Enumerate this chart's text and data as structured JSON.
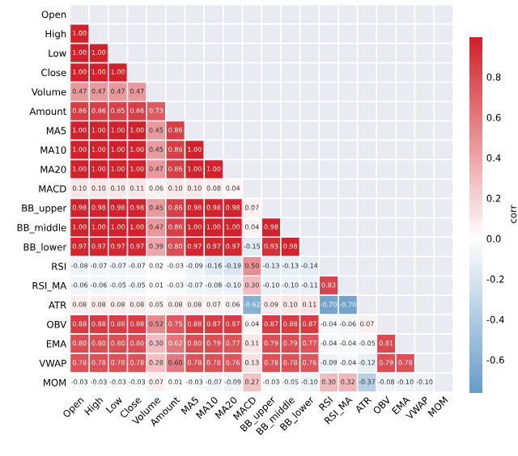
{
  "chart_data": {
    "type": "heatmap",
    "clabel": "corr",
    "data_labels": true,
    "grid": true,
    "categories": [
      "Open",
      "High",
      "Low",
      "Close",
      "Volume",
      "Amount",
      "MA5",
      "MA10",
      "MA20",
      "MACD",
      "BB_upper",
      "BB_middle",
      "BB_lower",
      "RSI",
      "RSI_MA",
      "ATR",
      "OBV",
      "EMA",
      "VWAP",
      "MOM"
    ],
    "y_categories": [
      "Open",
      "High",
      "Low",
      "Close",
      "Volume",
      "Amount",
      "MA5",
      "MA10",
      "MA20",
      "MACD",
      "BB_upper",
      "BB_middle",
      "BB_lower",
      "RSI",
      "RSI_MA",
      "ATR",
      "OBV",
      "EMA",
      "VWAP",
      "MOM"
    ],
    "clim": [
      -0.76,
      1.0
    ],
    "cticks": [
      {
        "value": -0.6,
        "label": "-0.6"
      },
      {
        "value": -0.4,
        "label": "-0.4"
      },
      {
        "value": -0.2,
        "label": "-0.2"
      },
      {
        "value": 0,
        "label": "0.0"
      },
      {
        "value": 0.2,
        "label": "0.2"
      },
      {
        "value": 0.4,
        "label": "0.4"
      },
      {
        "value": 0.6,
        "label": "0.6"
      },
      {
        "value": 0.8,
        "label": "0.8"
      }
    ],
    "cells": [
      [
        null,
        null,
        null,
        null,
        null,
        null,
        null,
        null,
        null,
        null,
        null,
        null,
        null,
        null,
        null,
        null,
        null,
        null,
        null,
        null
      ],
      [
        1.0,
        null,
        null,
        null,
        null,
        null,
        null,
        null,
        null,
        null,
        null,
        null,
        null,
        null,
        null,
        null,
        null,
        null,
        null,
        null
      ],
      [
        1.0,
        1.0,
        null,
        null,
        null,
        null,
        null,
        null,
        null,
        null,
        null,
        null,
        null,
        null,
        null,
        null,
        null,
        null,
        null,
        null
      ],
      [
        1.0,
        1.0,
        1.0,
        null,
        null,
        null,
        null,
        null,
        null,
        null,
        null,
        null,
        null,
        null,
        null,
        null,
        null,
        null,
        null,
        null
      ],
      [
        0.47,
        0.47,
        0.47,
        0.47,
        null,
        null,
        null,
        null,
        null,
        null,
        null,
        null,
        null,
        null,
        null,
        null,
        null,
        null,
        null,
        null
      ],
      [
        0.86,
        0.86,
        0.85,
        0.86,
        0.73,
        null,
        null,
        null,
        null,
        null,
        null,
        null,
        null,
        null,
        null,
        null,
        null,
        null,
        null,
        null
      ],
      [
        1.0,
        1.0,
        1.0,
        1.0,
        0.45,
        0.86,
        null,
        null,
        null,
        null,
        null,
        null,
        null,
        null,
        null,
        null,
        null,
        null,
        null,
        null
      ],
      [
        1.0,
        1.0,
        1.0,
        1.0,
        0.45,
        0.86,
        1.0,
        null,
        null,
        null,
        null,
        null,
        null,
        null,
        null,
        null,
        null,
        null,
        null,
        null
      ],
      [
        1.0,
        1.0,
        1.0,
        1.0,
        0.47,
        0.86,
        1.0,
        1.0,
        null,
        null,
        null,
        null,
        null,
        null,
        null,
        null,
        null,
        null,
        null,
        null
      ],
      [
        0.1,
        0.1,
        0.1,
        0.11,
        0.06,
        0.1,
        0.1,
        0.08,
        0.04,
        null,
        null,
        null,
        null,
        null,
        null,
        null,
        null,
        null,
        null,
        null
      ],
      [
        0.98,
        0.98,
        0.98,
        0.98,
        0.45,
        0.86,
        0.98,
        0.98,
        0.98,
        0.07,
        null,
        null,
        null,
        null,
        null,
        null,
        null,
        null,
        null,
        null
      ],
      [
        1.0,
        1.0,
        1.0,
        1.0,
        0.47,
        0.86,
        1.0,
        1.0,
        1.0,
        0.04,
        0.98,
        null,
        null,
        null,
        null,
        null,
        null,
        null,
        null,
        null
      ],
      [
        0.97,
        0.97,
        0.97,
        0.97,
        0.39,
        0.8,
        0.97,
        0.97,
        0.97,
        -0.15,
        0.93,
        0.98,
        null,
        null,
        null,
        null,
        null,
        null,
        null,
        null
      ],
      [
        -0.08,
        -0.07,
        -0.07,
        -0.07,
        0.02,
        -0.03,
        -0.09,
        -0.16,
        -0.19,
        0.5,
        -0.13,
        -0.13,
        -0.14,
        null,
        null,
        null,
        null,
        null,
        null,
        null
      ],
      [
        -0.06,
        -0.06,
        -0.05,
        -0.05,
        0.01,
        -0.03,
        -0.07,
        -0.08,
        -0.1,
        0.3,
        -0.1,
        -0.1,
        -0.11,
        0.83,
        null,
        null,
        null,
        null,
        null,
        null
      ],
      [
        0.08,
        0.08,
        0.08,
        0.08,
        0.05,
        0.08,
        0.08,
        0.07,
        0.06,
        -0.62,
        0.09,
        0.1,
        0.11,
        -0.7,
        -0.7,
        null,
        null,
        null,
        null,
        null
      ],
      [
        0.88,
        0.88,
        0.88,
        0.88,
        0.52,
        0.75,
        0.88,
        0.87,
        0.87,
        0.04,
        0.87,
        0.88,
        0.87,
        -0.04,
        -0.06,
        0.07,
        null,
        null,
        null,
        null
      ],
      [
        0.8,
        0.8,
        0.8,
        0.8,
        0.3,
        0.62,
        0.8,
        0.79,
        0.77,
        0.11,
        0.79,
        0.79,
        0.77,
        -0.04,
        -0.04,
        -0.05,
        0.81,
        null,
        null,
        null
      ],
      [
        0.78,
        0.78,
        0.78,
        0.78,
        0.28,
        0.6,
        0.78,
        0.78,
        0.76,
        0.13,
        0.78,
        0.78,
        0.76,
        -0.09,
        -0.04,
        -0.12,
        0.79,
        0.78,
        null,
        null
      ],
      [
        -0.03,
        -0.03,
        -0.03,
        -0.03,
        0.07,
        0.01,
        -0.03,
        -0.07,
        -0.09,
        0.27,
        -0.03,
        -0.05,
        -0.1,
        0.3,
        0.32,
        -0.37,
        -0.08,
        -0.1,
        -0.1,
        null
      ]
    ],
    "cell_labels": [
      [
        null,
        null,
        null,
        null,
        null,
        null,
        null,
        null,
        null,
        null,
        null,
        null,
        null,
        null,
        null,
        null,
        null,
        null,
        null,
        null
      ],
      [
        "1.00",
        null,
        null,
        null,
        null,
        null,
        null,
        null,
        null,
        null,
        null,
        null,
        null,
        null,
        null,
        null,
        null,
        null,
        null,
        null
      ],
      [
        "1.00",
        "1.00",
        null,
        null,
        null,
        null,
        null,
        null,
        null,
        null,
        null,
        null,
        null,
        null,
        null,
        null,
        null,
        null,
        null,
        null
      ],
      [
        "1.00",
        "1.00",
        "1.00",
        null,
        null,
        null,
        null,
        null,
        null,
        null,
        null,
        null,
        null,
        null,
        null,
        null,
        null,
        null,
        null,
        null
      ],
      [
        "0.47",
        "0.47",
        "0.47",
        "0.47",
        null,
        null,
        null,
        null,
        null,
        null,
        null,
        null,
        null,
        null,
        null,
        null,
        null,
        null,
        null,
        null
      ],
      [
        "0.86",
        "0.86",
        "0.85",
        "0.86",
        "0.73",
        null,
        null,
        null,
        null,
        null,
        null,
        null,
        null,
        null,
        null,
        null,
        null,
        null,
        null,
        null
      ],
      [
        "1.00",
        "1.00",
        "1.00",
        "1.00",
        "0.45",
        "0.86",
        null,
        null,
        null,
        null,
        null,
        null,
        null,
        null,
        null,
        null,
        null,
        null,
        null,
        null
      ],
      [
        "1.00",
        "1.00",
        "1.00",
        "1.00",
        "0.45",
        "0.86",
        "1.00",
        null,
        null,
        null,
        null,
        null,
        null,
        null,
        null,
        null,
        null,
        null,
        null,
        null
      ],
      [
        "1.00",
        "1.00",
        "1.00",
        "1.00",
        "0.47",
        "0.86",
        "1.00",
        "1.00",
        null,
        null,
        null,
        null,
        null,
        null,
        null,
        null,
        null,
        null,
        null,
        null
      ],
      [
        "0.10",
        "0.10",
        "0.10",
        "0.11",
        "0.06",
        "0.10",
        "0.10",
        "0.08",
        "0.04",
        null,
        null,
        null,
        null,
        null,
        null,
        null,
        null,
        null,
        null,
        null
      ],
      [
        "0.98",
        "0.98",
        "0.98",
        "0.98",
        "0.45",
        "0.86",
        "0.98",
        "0.98",
        "0.98",
        "0.07",
        null,
        null,
        null,
        null,
        null,
        null,
        null,
        null,
        null,
        null
      ],
      [
        "1.00",
        "1.00",
        "1.00",
        "1.00",
        "0.47",
        "0.86",
        "1.00",
        "1.00",
        "1.00",
        "0.04",
        "0.98",
        null,
        null,
        null,
        null,
        null,
        null,
        null,
        null,
        null
      ],
      [
        "0.97",
        "0.97",
        "0.97",
        "0.97",
        "0.39",
        "0.80",
        "0.97",
        "0.97",
        "0.97",
        "-0.15",
        "0.93",
        "0.98",
        null,
        null,
        null,
        null,
        null,
        null,
        null,
        null
      ],
      [
        "-0.08",
        "-0.07",
        "-0.07",
        "-0.07",
        "0.02",
        "-0.03",
        "-0.09",
        "-0.16",
        "-0.19",
        "0.50",
        "-0.13",
        "-0.13",
        "-0.14",
        null,
        null,
        null,
        null,
        null,
        null,
        null
      ],
      [
        "-0.06",
        "-0.06",
        "-0.05",
        "-0.05",
        "0.01",
        "-0.03",
        "-0.07",
        "-0.08",
        "-0.10",
        "0.30",
        "-0.10",
        "-0.10",
        "-0.11",
        "0.83",
        null,
        null,
        null,
        null,
        null,
        null
      ],
      [
        "0.08",
        "0.08",
        "0.08",
        "0.08",
        "0.05",
        "0.08",
        "0.08",
        "0.07",
        "0.06",
        "-0.62",
        "0.09",
        "0.10",
        "0.11",
        "-0.70",
        "-0.70",
        null,
        null,
        null,
        null,
        null
      ],
      [
        "0.88",
        "0.88",
        "0.88",
        "0.88",
        "0.52",
        "0.75",
        "0.88",
        "0.87",
        "0.87",
        "0.04",
        "0.87",
        "0.88",
        "0.87",
        "-0.04",
        "-0.06",
        "0.07",
        null,
        null,
        null,
        null
      ],
      [
        "0.80",
        "0.80",
        "0.80",
        "0.80",
        "0.30",
        "0.62",
        "0.80",
        "0.79",
        "0.77",
        "0.11",
        "0.79",
        "0.79",
        "0.77",
        "-0.04",
        "-0.04",
        "-0.05",
        "0.81",
        null,
        null,
        null
      ],
      [
        "0.78",
        "0.78",
        "0.78",
        "0.78",
        "0.28",
        "0.60",
        "0.78",
        "0.78",
        "0.76",
        "0.13",
        "0.78",
        "0.78",
        "0.76",
        "-0.09",
        "-0.04",
        "-0.12",
        "0.79",
        "0.78",
        null,
        null
      ],
      [
        "-0.03",
        "-0.03",
        "-0.03",
        "-0.03",
        "0.07",
        "0.01",
        "-0.03",
        "-0.07",
        "-0.09",
        "0.27",
        "-0.03",
        "-0.05",
        "-0.10",
        "0.30",
        "0.32",
        "-0.37",
        "-0.08",
        "-0.10",
        "-0.10",
        null
      ]
    ]
  }
}
